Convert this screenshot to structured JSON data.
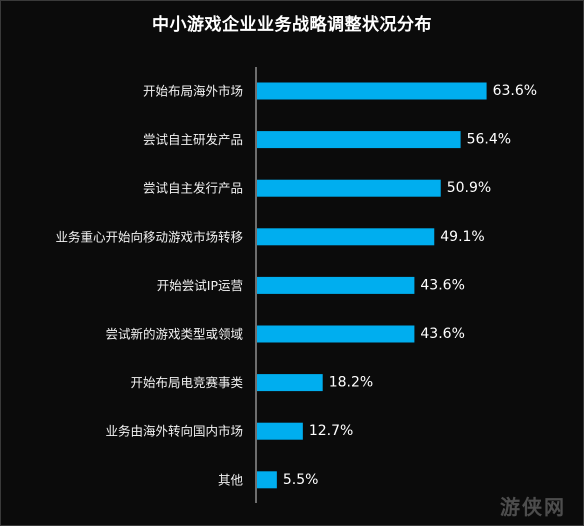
{
  "chart_data": {
    "type": "bar",
    "orientation": "horizontal",
    "title": "中小游戏企业业务战略调整状况分布",
    "categories": [
      "开始布局海外市场",
      "尝试自主研发产品",
      "尝试自主发行产品",
      "业务重心开始向移动游戏市场转移",
      "开始尝试IP运营",
      "尝试新的游戏类型或领域",
      "开始布局电竞赛事类",
      "业务由海外转向国内市场",
      "其他"
    ],
    "values": [
      63.6,
      56.4,
      50.9,
      49.1,
      43.6,
      43.6,
      18.2,
      12.7,
      5.5
    ],
    "value_labels": [
      "63.6%",
      "56.4%",
      "50.9%",
      "49.1%",
      "43.6%",
      "43.6%",
      "18.2%",
      "12.7%",
      "5.5%"
    ],
    "unit": "%",
    "xlim": [
      0,
      100
    ],
    "grid": false,
    "bar_color": "#00aeef",
    "background_color": "#0b0b0b"
  },
  "watermark": "游侠网"
}
